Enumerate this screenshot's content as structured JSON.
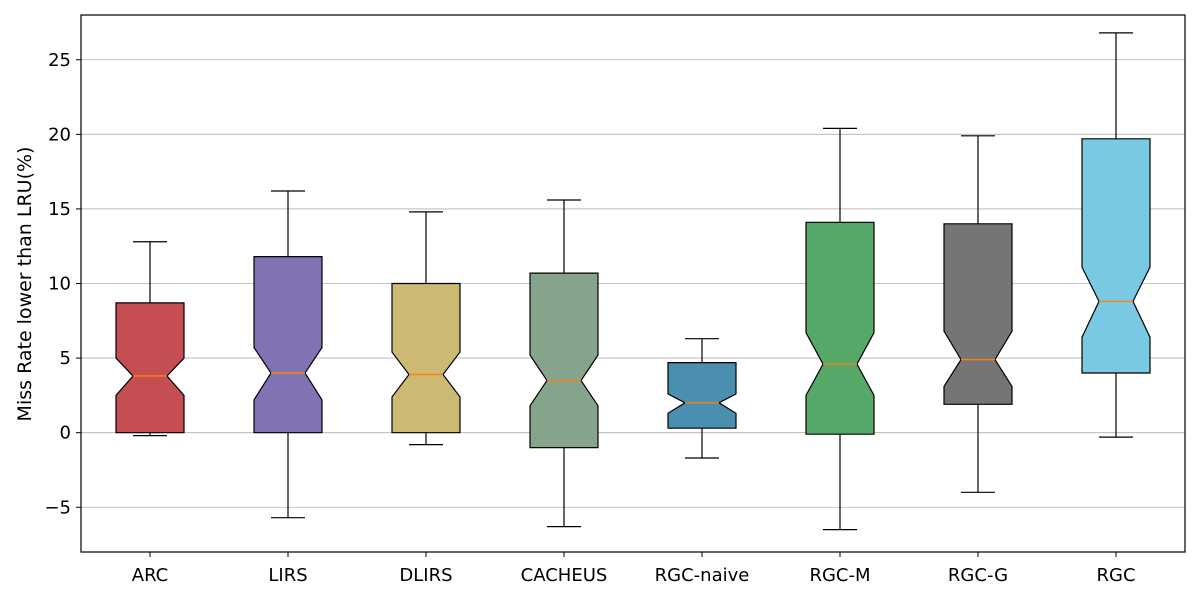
{
  "chart_data": {
    "type": "boxplot",
    "notched": true,
    "ylabel": "Miss Rate lower than LRU(%)",
    "xlabel": "",
    "title": "",
    "ylim": [
      -8,
      28
    ],
    "yticks": [
      -5,
      0,
      5,
      10,
      15,
      20,
      25
    ],
    "grid": "horizontal",
    "median_color": "#ff7f0e",
    "boxes": [
      {
        "label": "ARC",
        "color": "#c44e52",
        "whisker_low": -0.2,
        "q1": 0.0,
        "notch_low": 2.5,
        "median": 3.8,
        "notch_high": 5.0,
        "q3": 8.7,
        "whisker_high": 12.8
      },
      {
        "label": "LIRS",
        "color": "#8172b3",
        "whisker_low": -5.7,
        "q1": 0.0,
        "notch_low": 2.2,
        "median": 4.0,
        "notch_high": 5.7,
        "q3": 11.8,
        "whisker_high": 16.2
      },
      {
        "label": "DLIRS",
        "color": "#ccb974",
        "whisker_low": -0.8,
        "q1": 0.0,
        "notch_low": 2.4,
        "median": 3.9,
        "notch_high": 5.4,
        "q3": 10.0,
        "whisker_high": 14.8
      },
      {
        "label": "CACHEUS",
        "color": "#86a48b",
        "whisker_low": -6.3,
        "q1": -1.0,
        "notch_low": 1.8,
        "median": 3.5,
        "notch_high": 5.2,
        "q3": 10.7,
        "whisker_high": 15.6
      },
      {
        "label": "RGC-naive",
        "color": "#4a8fb0",
        "whisker_low": -1.7,
        "q1": 0.3,
        "notch_low": 1.3,
        "median": 2.0,
        "notch_high": 2.6,
        "q3": 4.7,
        "whisker_high": 6.3
      },
      {
        "label": "RGC-M",
        "color": "#55a868",
        "whisker_low": -6.5,
        "q1": -0.1,
        "notch_low": 2.5,
        "median": 4.6,
        "notch_high": 6.7,
        "q3": 14.1,
        "whisker_high": 20.4
      },
      {
        "label": "RGC-G",
        "color": "#757575",
        "whisker_low": -4.0,
        "q1": 1.9,
        "notch_low": 3.1,
        "median": 4.9,
        "notch_high": 6.8,
        "q3": 14.0,
        "whisker_high": 19.9
      },
      {
        "label": "RGC",
        "color": "#79c9e3",
        "whisker_low": -0.3,
        "q1": 4.0,
        "notch_low": 6.4,
        "median": 8.8,
        "notch_high": 11.1,
        "q3": 19.7,
        "whisker_high": 26.8
      }
    ]
  }
}
